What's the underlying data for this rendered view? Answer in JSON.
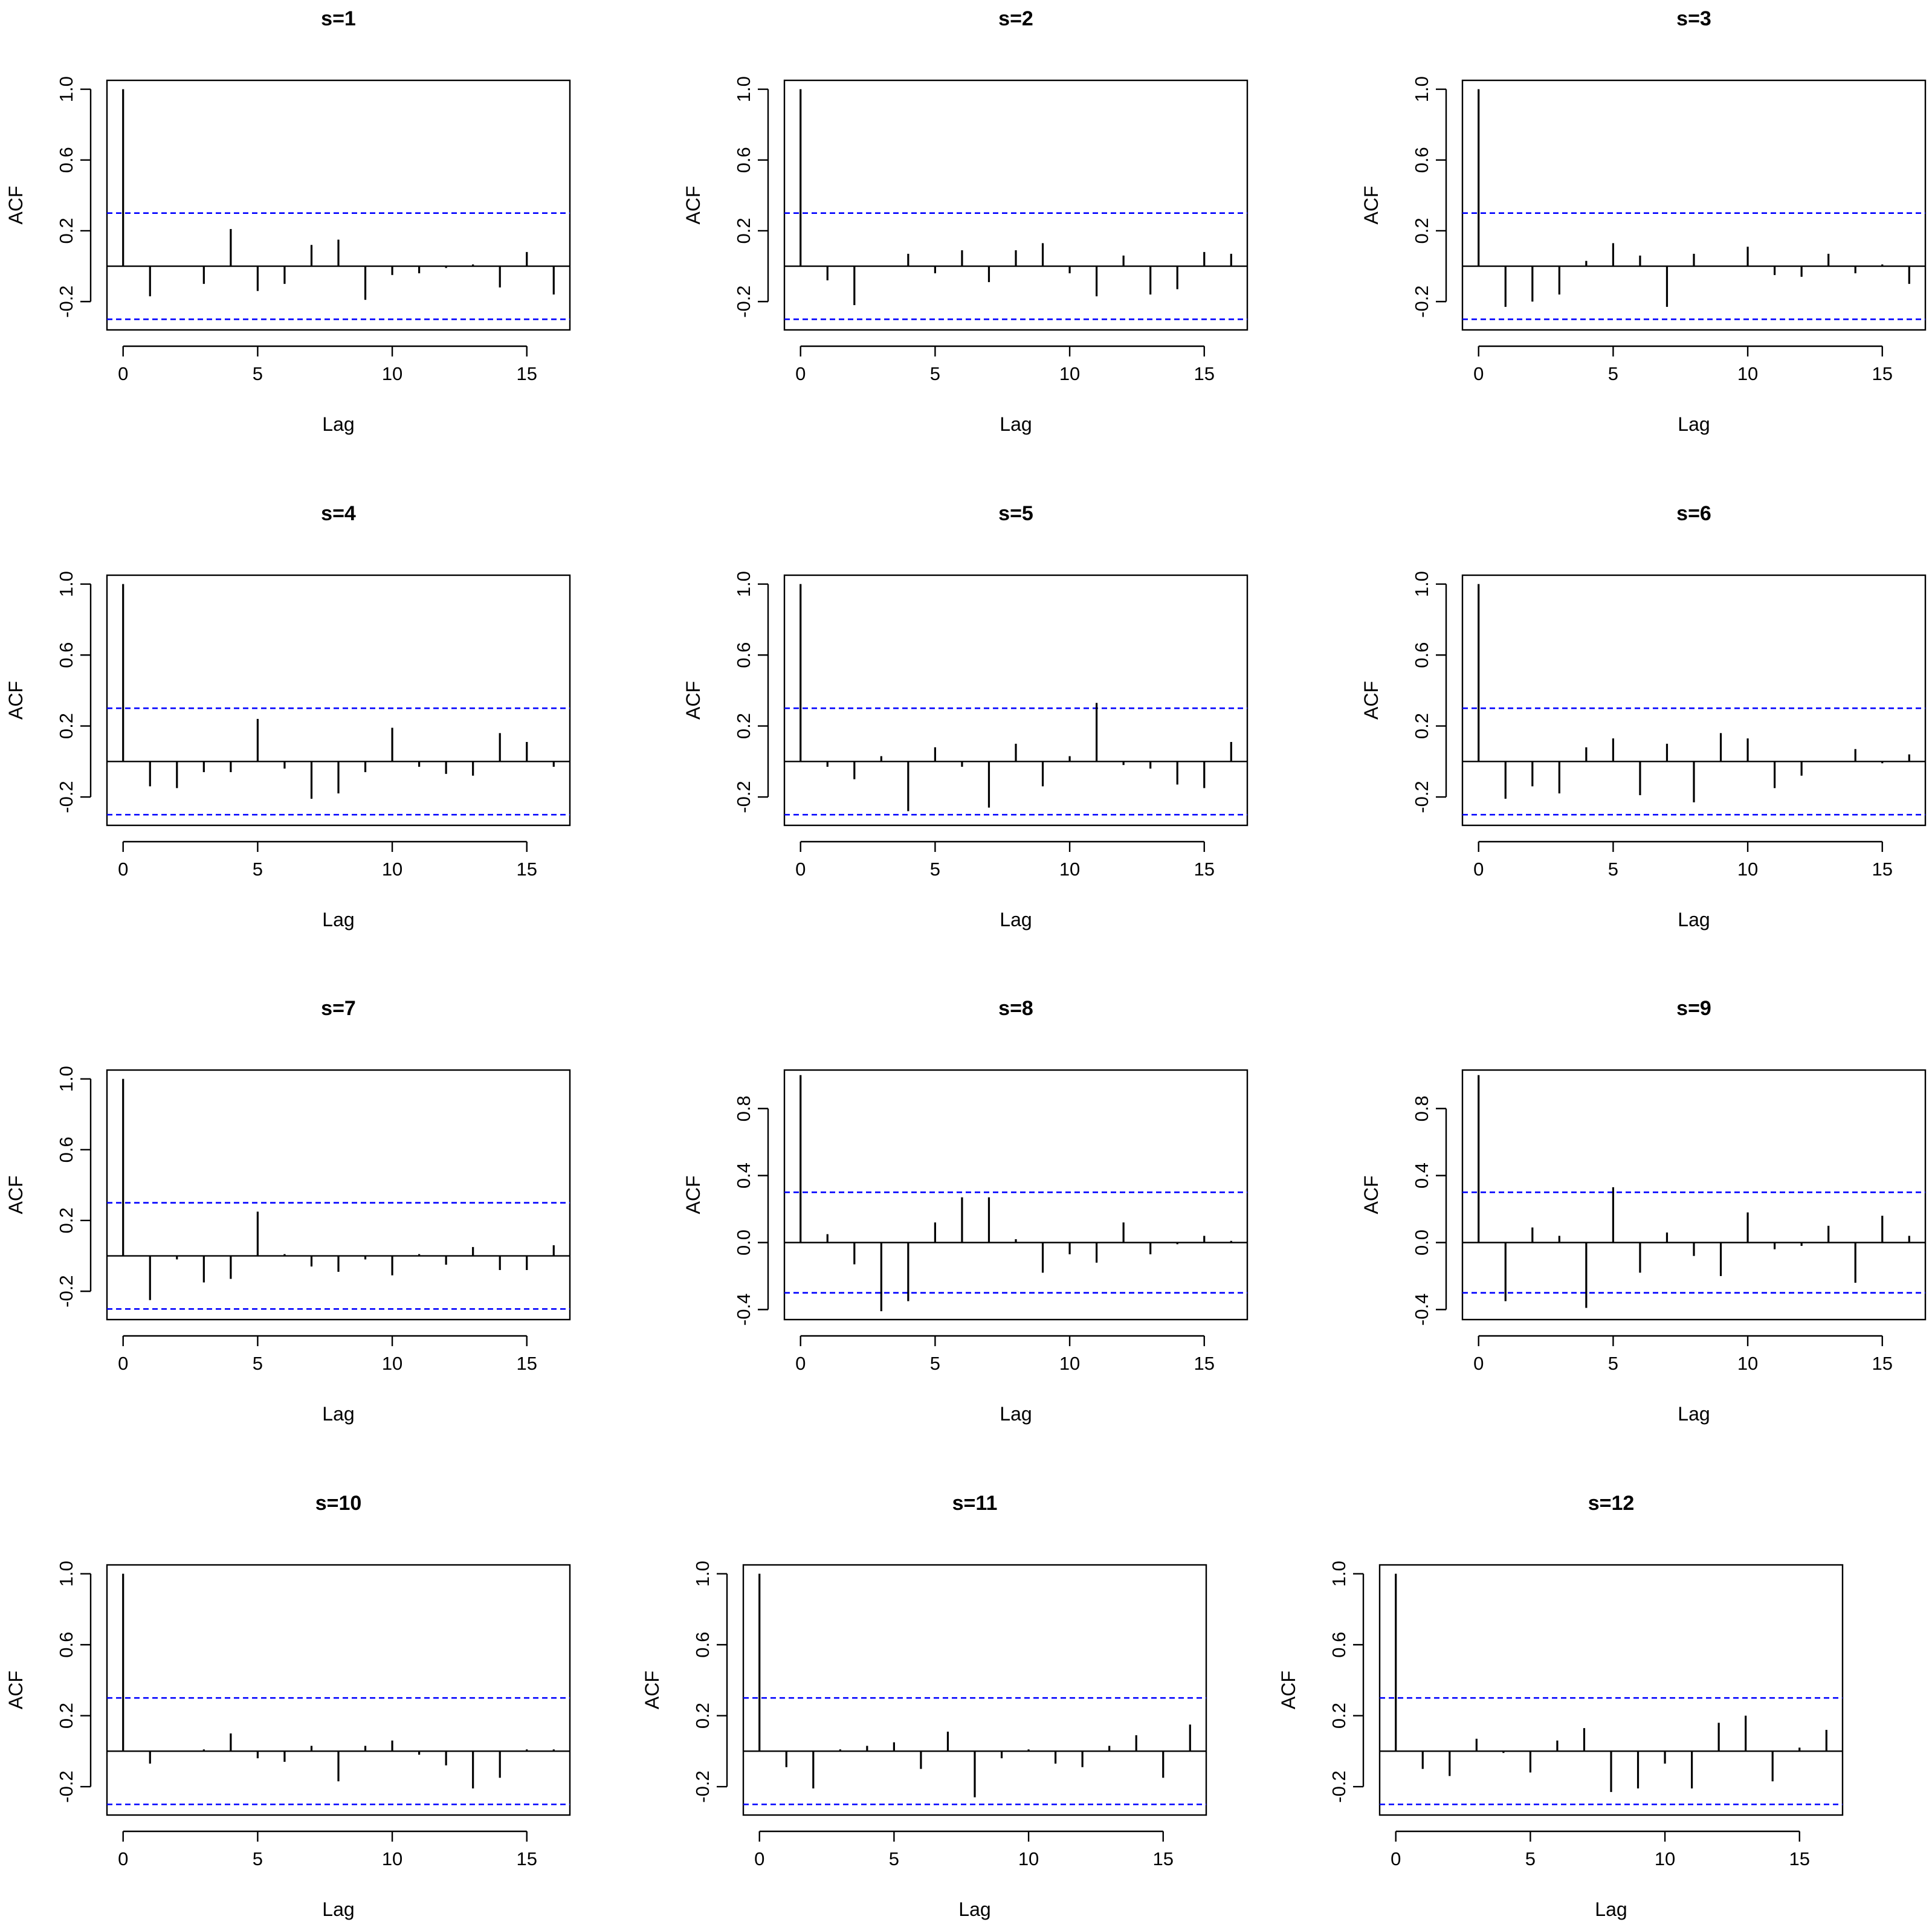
{
  "chart_data": [
    {
      "type": "bar",
      "title": "s=1",
      "xlabel": "Lag",
      "ylabel": "ACF",
      "xlim": [
        -0.6,
        16.6
      ],
      "ylim": [
        -0.36,
        1.05
      ],
      "yticks": [
        -0.2,
        0.2,
        0.6,
        1.0
      ],
      "ytick_labels": [
        "-0.2",
        "0.2",
        "0.6",
        "1.0"
      ],
      "xticks": [
        0,
        5,
        10,
        15
      ],
      "ci": 0.3,
      "x": [
        0,
        1,
        2,
        3,
        4,
        5,
        6,
        7,
        8,
        9,
        10,
        11,
        12,
        13,
        14,
        15,
        16
      ],
      "values": [
        1.0,
        -0.17,
        0.0,
        -0.1,
        0.21,
        -0.14,
        -0.1,
        0.12,
        0.15,
        -0.19,
        -0.05,
        -0.04,
        -0.01,
        0.01,
        -0.12,
        0.08,
        -0.16
      ]
    },
    {
      "type": "bar",
      "title": "s=2",
      "xlabel": "Lag",
      "ylabel": "ACF",
      "xlim": [
        -0.6,
        16.6
      ],
      "ylim": [
        -0.36,
        1.05
      ],
      "yticks": [
        -0.2,
        0.2,
        0.6,
        1.0
      ],
      "ytick_labels": [
        "-0.2",
        "0.2",
        "0.6",
        "1.0"
      ],
      "xticks": [
        0,
        5,
        10,
        15
      ],
      "ci": 0.3,
      "x": [
        0,
        1,
        2,
        3,
        4,
        5,
        6,
        7,
        8,
        9,
        10,
        11,
        12,
        13,
        14,
        15,
        16
      ],
      "values": [
        1.0,
        -0.08,
        -0.22,
        0.0,
        0.07,
        -0.04,
        0.09,
        -0.09,
        0.09,
        0.13,
        -0.04,
        -0.17,
        0.06,
        -0.16,
        -0.13,
        0.08,
        0.07
      ]
    },
    {
      "type": "bar",
      "title": "s=3",
      "xlabel": "Lag",
      "ylabel": "ACF",
      "xlim": [
        -0.6,
        16.6
      ],
      "ylim": [
        -0.36,
        1.05
      ],
      "yticks": [
        -0.2,
        0.2,
        0.6,
        1.0
      ],
      "ytick_labels": [
        "-0.2",
        "0.2",
        "0.6",
        "1.0"
      ],
      "xticks": [
        0,
        5,
        10,
        15
      ],
      "ci": 0.3,
      "x": [
        0,
        1,
        2,
        3,
        4,
        5,
        6,
        7,
        8,
        9,
        10,
        11,
        12,
        13,
        14,
        15,
        16
      ],
      "values": [
        1.0,
        -0.23,
        -0.2,
        -0.16,
        0.03,
        0.13,
        0.06,
        -0.23,
        0.07,
        0.0,
        0.11,
        -0.05,
        -0.06,
        0.07,
        -0.04,
        0.01,
        -0.1
      ]
    },
    {
      "type": "bar",
      "title": "s=4",
      "xlabel": "Lag",
      "ylabel": "ACF",
      "xlim": [
        -0.6,
        16.6
      ],
      "ylim": [
        -0.36,
        1.05
      ],
      "yticks": [
        -0.2,
        0.2,
        0.6,
        1.0
      ],
      "ytick_labels": [
        "-0.2",
        "0.2",
        "0.6",
        "1.0"
      ],
      "xticks": [
        0,
        5,
        10,
        15
      ],
      "ci": 0.3,
      "x": [
        0,
        1,
        2,
        3,
        4,
        5,
        6,
        7,
        8,
        9,
        10,
        11,
        12,
        13,
        14,
        15,
        16
      ],
      "values": [
        1.0,
        -0.14,
        -0.15,
        -0.06,
        -0.06,
        0.24,
        -0.04,
        -0.21,
        -0.18,
        -0.06,
        0.19,
        -0.03,
        -0.07,
        -0.08,
        0.16,
        0.11,
        -0.03
      ]
    },
    {
      "type": "bar",
      "title": "s=5",
      "xlabel": "Lag",
      "ylabel": "ACF",
      "xlim": [
        -0.6,
        16.6
      ],
      "ylim": [
        -0.36,
        1.05
      ],
      "yticks": [
        -0.2,
        0.2,
        0.6,
        1.0
      ],
      "ytick_labels": [
        "-0.2",
        "0.2",
        "0.6",
        "1.0"
      ],
      "xticks": [
        0,
        5,
        10,
        15
      ],
      "ci": 0.3,
      "x": [
        0,
        1,
        2,
        3,
        4,
        5,
        6,
        7,
        8,
        9,
        10,
        11,
        12,
        13,
        14,
        15,
        16
      ],
      "values": [
        1.0,
        -0.03,
        -0.1,
        0.03,
        -0.28,
        0.08,
        -0.03,
        -0.26,
        0.1,
        -0.14,
        0.03,
        0.33,
        -0.02,
        -0.04,
        -0.13,
        -0.15,
        0.11
      ]
    },
    {
      "type": "bar",
      "title": "s=6",
      "xlabel": "Lag",
      "ylabel": "ACF",
      "xlim": [
        -0.6,
        16.6
      ],
      "ylim": [
        -0.36,
        1.05
      ],
      "yticks": [
        -0.2,
        0.2,
        0.6,
        1.0
      ],
      "ytick_labels": [
        "-0.2",
        "0.2",
        "0.6",
        "1.0"
      ],
      "xticks": [
        0,
        5,
        10,
        15
      ],
      "ci": 0.3,
      "x": [
        0,
        1,
        2,
        3,
        4,
        5,
        6,
        7,
        8,
        9,
        10,
        11,
        12,
        13,
        14,
        15,
        16
      ],
      "values": [
        1.0,
        -0.21,
        -0.14,
        -0.18,
        0.08,
        0.13,
        -0.19,
        0.1,
        -0.23,
        0.16,
        0.13,
        -0.15,
        -0.08,
        0.0,
        0.07,
        -0.01,
        0.04
      ]
    },
    {
      "type": "bar",
      "title": "s=7",
      "xlabel": "Lag",
      "ylabel": "ACF",
      "xlim": [
        -0.6,
        16.6
      ],
      "ylim": [
        -0.36,
        1.05
      ],
      "yticks": [
        -0.2,
        0.2,
        0.6,
        1.0
      ],
      "ytick_labels": [
        "-0.2",
        "0.2",
        "0.6",
        "1.0"
      ],
      "xticks": [
        0,
        5,
        10,
        15
      ],
      "ci": 0.3,
      "x": [
        0,
        1,
        2,
        3,
        4,
        5,
        6,
        7,
        8,
        9,
        10,
        11,
        12,
        13,
        14,
        15,
        16
      ],
      "values": [
        1.0,
        -0.25,
        -0.02,
        -0.15,
        -0.13,
        0.25,
        0.01,
        -0.06,
        -0.09,
        -0.02,
        -0.11,
        0.01,
        -0.05,
        0.05,
        -0.08,
        -0.08,
        0.06
      ]
    },
    {
      "type": "bar",
      "title": "s=8",
      "xlabel": "Lag",
      "ylabel": "ACF",
      "xlim": [
        -0.6,
        16.6
      ],
      "ylim": [
        -0.46,
        1.03
      ],
      "yticks": [
        -0.4,
        0.0,
        0.4,
        0.8
      ],
      "ytick_labels": [
        "-0.4",
        "0.0",
        "0.4",
        "0.8"
      ],
      "xticks": [
        0,
        5,
        10,
        15
      ],
      "ci": 0.3,
      "x": [
        0,
        1,
        2,
        3,
        4,
        5,
        6,
        7,
        8,
        9,
        10,
        11,
        12,
        13,
        14,
        15,
        16
      ],
      "values": [
        1.0,
        0.05,
        -0.13,
        -0.41,
        -0.35,
        0.12,
        0.27,
        0.27,
        0.02,
        -0.18,
        -0.07,
        -0.12,
        0.12,
        -0.07,
        -0.01,
        0.04,
        0.01
      ]
    },
    {
      "type": "bar",
      "title": "s=9",
      "xlabel": "Lag",
      "ylabel": "ACF",
      "xlim": [
        -0.6,
        16.6
      ],
      "ylim": [
        -0.46,
        1.03
      ],
      "yticks": [
        -0.4,
        0.0,
        0.4,
        0.8
      ],
      "ytick_labels": [
        "-0.4",
        "0.0",
        "0.4",
        "0.8"
      ],
      "xticks": [
        0,
        5,
        10,
        15
      ],
      "ci": 0.3,
      "x": [
        0,
        1,
        2,
        3,
        4,
        5,
        6,
        7,
        8,
        9,
        10,
        11,
        12,
        13,
        14,
        15,
        16
      ],
      "values": [
        1.0,
        -0.35,
        0.09,
        0.04,
        -0.39,
        0.33,
        -0.18,
        0.06,
        -0.08,
        -0.2,
        0.18,
        -0.04,
        -0.02,
        0.1,
        -0.24,
        0.16,
        0.04
      ]
    },
    {
      "type": "bar",
      "title": "s=10",
      "xlabel": "Lag",
      "ylabel": "ACF",
      "xlim": [
        -0.6,
        16.6
      ],
      "ylim": [
        -0.36,
        1.05
      ],
      "yticks": [
        -0.2,
        0.2,
        0.6,
        1.0
      ],
      "ytick_labels": [
        "-0.2",
        "0.2",
        "0.6",
        "1.0"
      ],
      "xticks": [
        0,
        5,
        10,
        15
      ],
      "ci": 0.3,
      "x": [
        0,
        1,
        2,
        3,
        4,
        5,
        6,
        7,
        8,
        9,
        10,
        11,
        12,
        13,
        14,
        15,
        16
      ],
      "values": [
        1.0,
        -0.07,
        0.0,
        0.01,
        0.1,
        -0.04,
        -0.06,
        0.03,
        -0.17,
        0.03,
        0.06,
        -0.02,
        -0.08,
        -0.21,
        -0.15,
        0.01,
        0.01
      ]
    },
    {
      "type": "bar",
      "title": "s=11",
      "xlabel": "Lag",
      "ylabel": "ACF",
      "xlim": [
        -0.6,
        16.6
      ],
      "ylim": [
        -0.36,
        1.05
      ],
      "yticks": [
        -0.2,
        0.2,
        0.6,
        1.0
      ],
      "ytick_labels": [
        "-0.2",
        "0.2",
        "0.6",
        "1.0"
      ],
      "xticks": [
        0,
        5,
        10,
        15
      ],
      "ci": 0.3,
      "x": [
        0,
        1,
        2,
        3,
        4,
        5,
        6,
        7,
        8,
        9,
        10,
        11,
        12,
        13,
        14,
        15,
        16
      ],
      "values": [
        1.0,
        -0.09,
        -0.21,
        0.01,
        0.03,
        0.05,
        -0.1,
        0.11,
        -0.26,
        -0.04,
        0.01,
        -0.07,
        -0.09,
        0.03,
        0.09,
        -0.15,
        0.15
      ]
    },
    {
      "type": "bar",
      "title": "s=12",
      "xlabel": "Lag",
      "ylabel": "ACF",
      "xlim": [
        -0.6,
        16.6
      ],
      "ylim": [
        -0.36,
        1.05
      ],
      "yticks": [
        -0.2,
        0.2,
        0.6,
        1.0
      ],
      "ytick_labels": [
        "-0.2",
        "0.2",
        "0.6",
        "1.0"
      ],
      "xticks": [
        0,
        5,
        10,
        15
      ],
      "ci": 0.3,
      "x": [
        0,
        1,
        2,
        3,
        4,
        5,
        6,
        7,
        8,
        9,
        10,
        11,
        12,
        13,
        14,
        15,
        16
      ],
      "values": [
        1.0,
        -0.1,
        -0.14,
        0.07,
        -0.01,
        -0.12,
        0.06,
        0.13,
        -0.23,
        -0.21,
        -0.07,
        -0.21,
        0.16,
        0.2,
        -0.17,
        0.02,
        0.12
      ]
    }
  ],
  "colors": {
    "bars": "#000000",
    "confidence_band": "#0000ff",
    "frame": "#000000"
  }
}
